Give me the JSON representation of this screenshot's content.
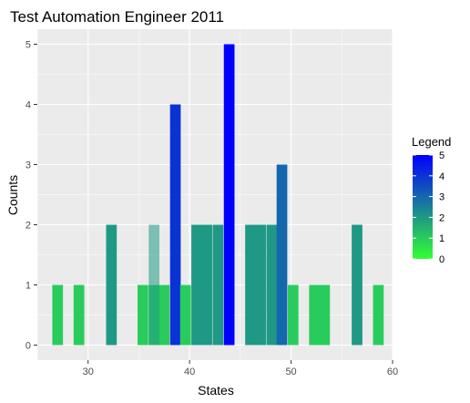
{
  "chart_data": {
    "type": "bar",
    "title": "Test Automation Engineer 2011",
    "xlabel": "States",
    "ylabel": "Counts",
    "xlim": [
      25,
      60
    ],
    "ylim": [
      -0.25,
      5.25
    ],
    "xticks": [
      30,
      40,
      50,
      60
    ],
    "yticks": [
      0,
      1,
      2,
      3,
      4,
      5
    ],
    "bin_width": 1.05,
    "grid": true,
    "legend": {
      "title": "Legend",
      "position": "right",
      "min": 0,
      "max": 5,
      "ticks": [
        0,
        1,
        2,
        3,
        4,
        5
      ],
      "color_low": "#33ff33",
      "color_high": "#0000ff"
    },
    "bars": [
      {
        "x": 27.0,
        "count": 1
      },
      {
        "x": 29.1,
        "count": 1
      },
      {
        "x": 32.3,
        "count": 2
      },
      {
        "x": 35.4,
        "count": 1
      },
      {
        "x": 36.5,
        "count": 1
      },
      {
        "x": 37.5,
        "count": 1
      },
      {
        "x": 38.6,
        "count": 4
      },
      {
        "x": 39.6,
        "count": 1
      },
      {
        "x": 40.7,
        "count": 2
      },
      {
        "x": 41.7,
        "count": 2
      },
      {
        "x": 42.8,
        "count": 2
      },
      {
        "x": 43.9,
        "count": 5
      },
      {
        "x": 46.0,
        "count": 2
      },
      {
        "x": 47.0,
        "count": 2
      },
      {
        "x": 48.1,
        "count": 2
      },
      {
        "x": 49.1,
        "count": 3
      },
      {
        "x": 50.2,
        "count": 1
      },
      {
        "x": 52.3,
        "count": 1
      },
      {
        "x": 53.3,
        "count": 1
      },
      {
        "x": 56.5,
        "count": 2
      },
      {
        "x": 58.6,
        "count": 1
      }
    ],
    "overlay_bars": [
      {
        "x": 36.5,
        "count": 2
      },
      {
        "x": 39.6,
        "count": 1
      }
    ]
  }
}
